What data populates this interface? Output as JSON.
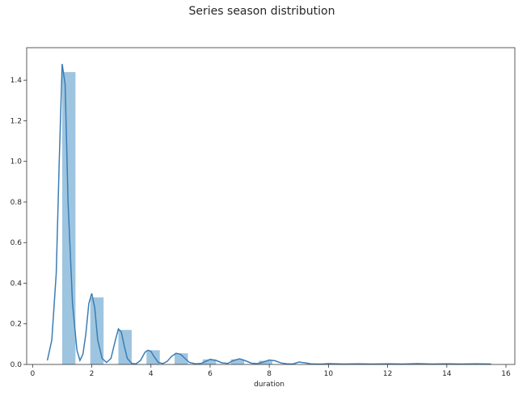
{
  "chart_data": {
    "type": "bar",
    "title": "Series season distribution",
    "xlabel": "duration",
    "ylabel": "",
    "xlim": [
      -0.2,
      16.3
    ],
    "ylim": [
      0,
      1.56
    ],
    "xticks": [
      0,
      2,
      4,
      6,
      8,
      10,
      12,
      14,
      16
    ],
    "yticks": [
      0.0,
      0.2,
      0.4,
      0.6,
      0.8,
      1.0,
      1.2,
      1.4
    ],
    "grid": false,
    "colors": {
      "bars": "#9ec5e0",
      "line": "#3a7db5"
    },
    "bars": [
      {
        "x0": 1.0,
        "x1": 1.45,
        "height": 1.44
      },
      {
        "x0": 1.95,
        "x1": 2.4,
        "height": 0.33
      },
      {
        "x0": 2.9,
        "x1": 3.35,
        "height": 0.17
      },
      {
        "x0": 3.85,
        "x1": 4.3,
        "height": 0.07
      },
      {
        "x0": 4.8,
        "x1": 5.25,
        "height": 0.055
      },
      {
        "x0": 5.75,
        "x1": 6.2,
        "height": 0.025
      },
      {
        "x0": 6.7,
        "x1": 7.15,
        "height": 0.025
      },
      {
        "x0": 7.65,
        "x1": 8.1,
        "height": 0.018
      }
    ],
    "series": [
      {
        "type": "line",
        "x": [
          0.5,
          0.65,
          0.8,
          0.9,
          1.0,
          1.1,
          1.2,
          1.35,
          1.5,
          1.6,
          1.7,
          1.8,
          1.9,
          2.0,
          2.1,
          2.2,
          2.35,
          2.5,
          2.65,
          2.8,
          2.9,
          3.0,
          3.1,
          3.2,
          3.35,
          3.5,
          3.65,
          3.8,
          3.9,
          4.0,
          4.1,
          4.25,
          4.4,
          4.55,
          4.7,
          4.85,
          5.0,
          5.15,
          5.3,
          5.5,
          5.7,
          5.85,
          6.0,
          6.2,
          6.4,
          6.6,
          6.8,
          7.0,
          7.2,
          7.4,
          7.6,
          7.8,
          8.0,
          8.2,
          8.4,
          8.6,
          8.8,
          9.0,
          9.2,
          9.4,
          9.6,
          9.8,
          10.0,
          10.5,
          11.0,
          11.5,
          12.0,
          12.5,
          13.0,
          13.5,
          14.0,
          14.5,
          15.0,
          15.5
        ],
        "y": [
          0.02,
          0.12,
          0.45,
          1.0,
          1.48,
          1.38,
          0.8,
          0.3,
          0.07,
          0.02,
          0.05,
          0.15,
          0.3,
          0.35,
          0.28,
          0.12,
          0.03,
          0.01,
          0.03,
          0.12,
          0.175,
          0.16,
          0.09,
          0.03,
          0.005,
          0.003,
          0.02,
          0.06,
          0.07,
          0.065,
          0.04,
          0.01,
          0.004,
          0.015,
          0.04,
          0.055,
          0.05,
          0.03,
          0.01,
          0.003,
          0.005,
          0.015,
          0.025,
          0.02,
          0.008,
          0.005,
          0.02,
          0.028,
          0.018,
          0.006,
          0.004,
          0.012,
          0.022,
          0.018,
          0.007,
          0.003,
          0.002,
          0.012,
          0.008,
          0.003,
          0.002,
          0.002,
          0.004,
          0.002,
          0.003,
          0.002,
          0.003,
          0.002,
          0.004,
          0.002,
          0.003,
          0.002,
          0.003,
          0.002
        ]
      }
    ]
  }
}
